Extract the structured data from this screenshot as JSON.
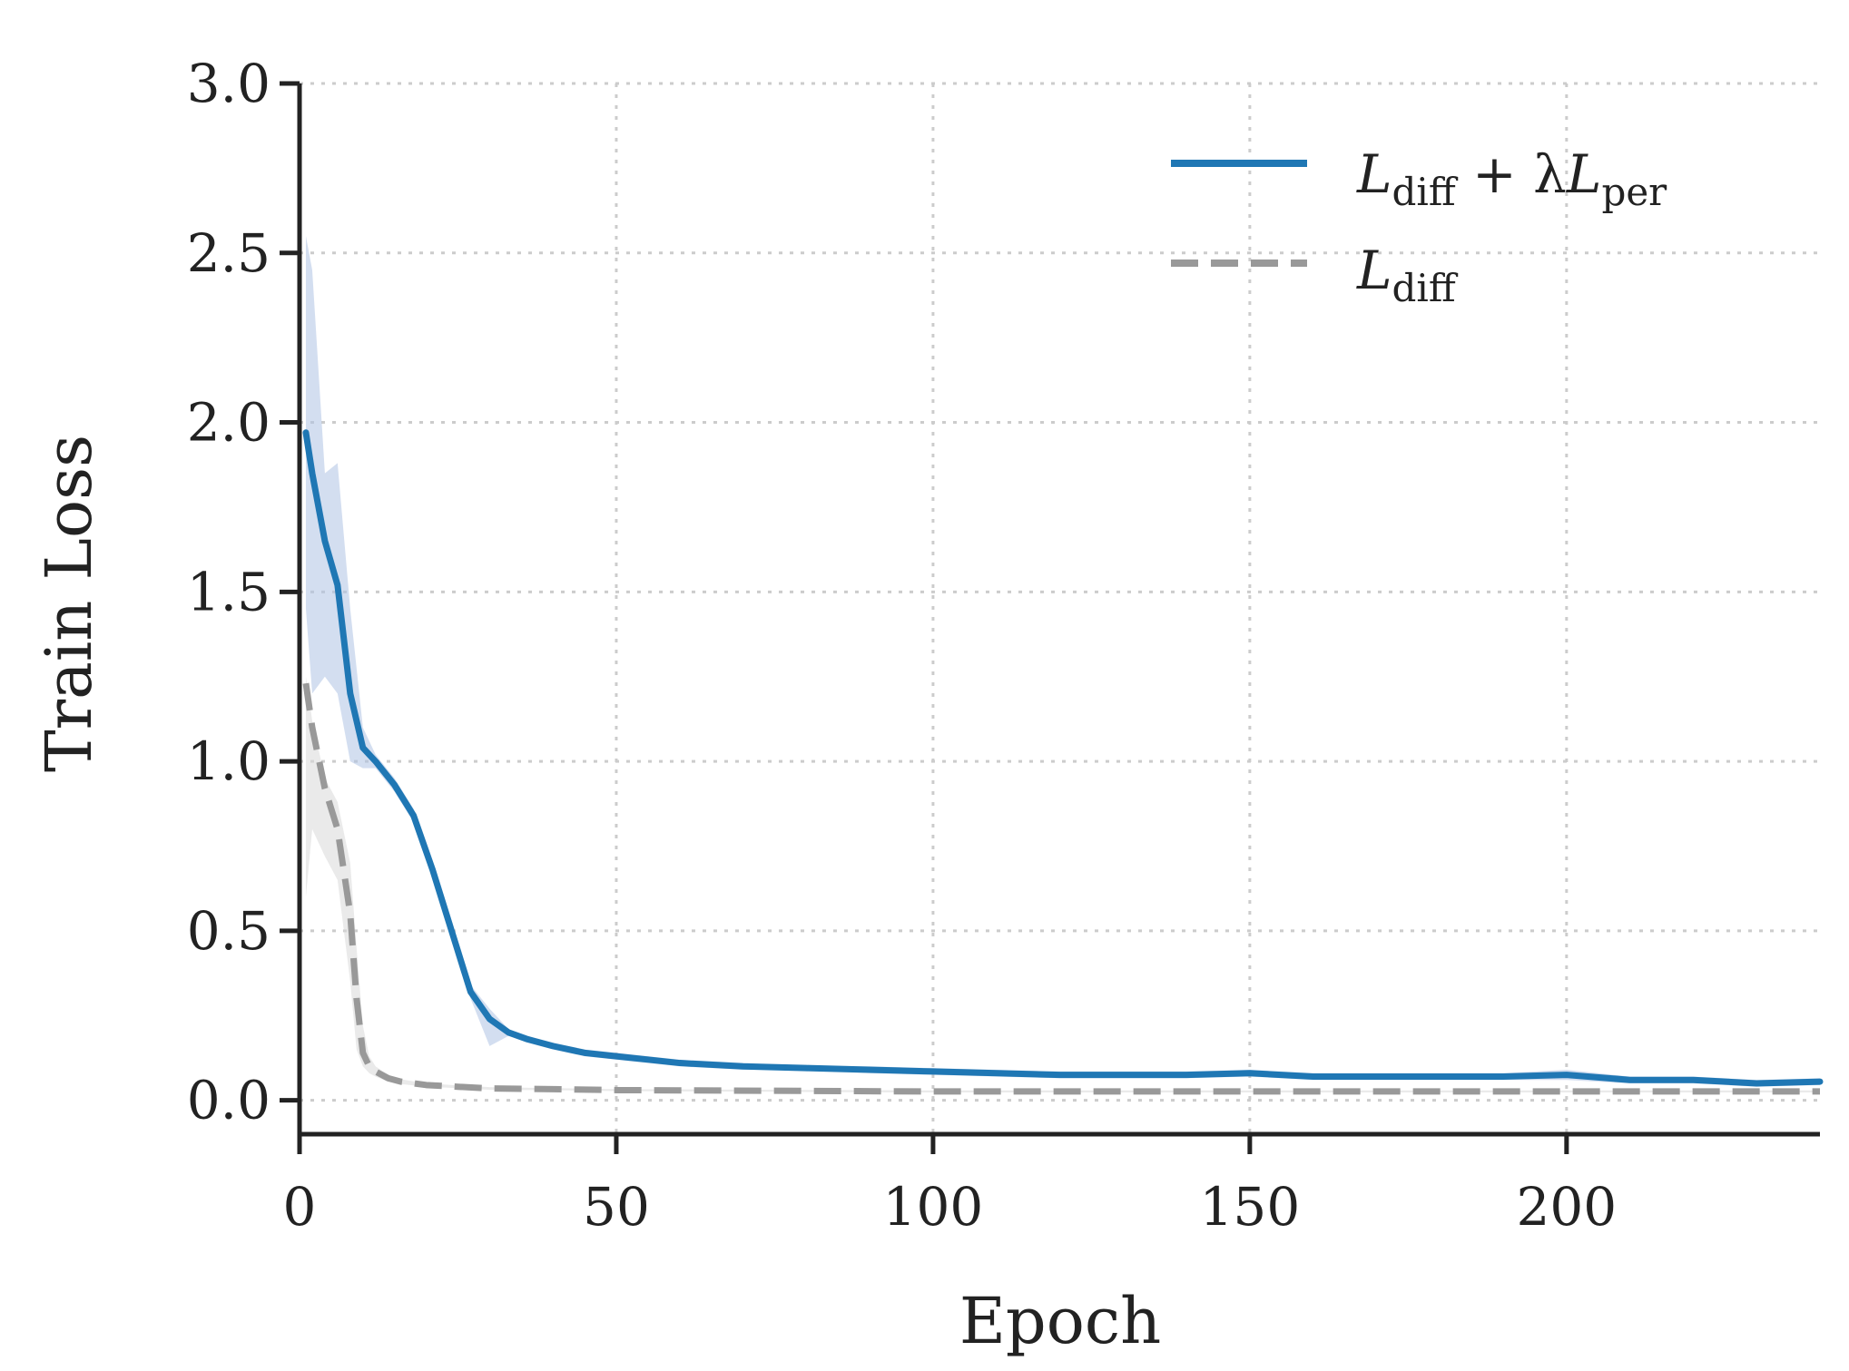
{
  "chart_data": {
    "type": "line",
    "xlabel": "Epoch",
    "ylabel": "Train Loss",
    "xlim": [
      0,
      240
    ],
    "ylim": [
      -0.1,
      3.0
    ],
    "xticks": [
      "0",
      "50",
      "100",
      "150",
      "200"
    ],
    "xtick_values": [
      0,
      50,
      100,
      150,
      200
    ],
    "yticks": [
      "0.0",
      "0.5",
      "1.0",
      "1.5",
      "2.0",
      "2.5",
      "3.0"
    ],
    "ytick_values": [
      0.0,
      0.5,
      1.0,
      1.5,
      2.0,
      2.5,
      3.0
    ],
    "grid": true,
    "legend_position": "top-right",
    "series": [
      {
        "name": "L_diff + λL_per",
        "legend": {
          "main": "L",
          "sub": "diff",
          "op": " + λ",
          "main2": "L",
          "sub2": "per"
        },
        "style": "solid",
        "color": "#1f77b4",
        "band_color": "#aec3e3",
        "x": [
          1,
          2,
          4,
          6,
          8,
          10,
          12,
          15,
          18,
          21,
          24,
          27,
          30,
          33,
          36,
          40,
          45,
          50,
          55,
          60,
          70,
          80,
          90,
          100,
          110,
          120,
          130,
          140,
          150,
          160,
          170,
          180,
          190,
          200,
          210,
          220,
          230,
          240
        ],
        "y": [
          1.97,
          1.85,
          1.65,
          1.52,
          1.2,
          1.04,
          1.0,
          0.93,
          0.84,
          0.68,
          0.5,
          0.32,
          0.24,
          0.2,
          0.18,
          0.16,
          0.14,
          0.13,
          0.12,
          0.11,
          0.1,
          0.095,
          0.09,
          0.085,
          0.08,
          0.075,
          0.075,
          0.075,
          0.08,
          0.07,
          0.07,
          0.07,
          0.07,
          0.075,
          0.06,
          0.06,
          0.05,
          0.055
        ],
        "y_upper": [
          2.55,
          2.45,
          1.85,
          1.88,
          1.45,
          1.1,
          1.02,
          0.95,
          0.86,
          0.7,
          0.52,
          0.34,
          0.27,
          0.21,
          0.19,
          0.17,
          0.15,
          0.14,
          0.13,
          0.12,
          0.11,
          0.1,
          0.1,
          0.095,
          0.09,
          0.085,
          0.085,
          0.085,
          0.09,
          0.08,
          0.08,
          0.08,
          0.08,
          0.09,
          0.07,
          0.07,
          0.06,
          0.065
        ],
        "y_lower": [
          1.45,
          1.2,
          1.25,
          1.2,
          1.0,
          0.98,
          0.98,
          0.91,
          0.82,
          0.66,
          0.48,
          0.3,
          0.16,
          0.19,
          0.17,
          0.15,
          0.13,
          0.12,
          0.11,
          0.1,
          0.09,
          0.09,
          0.08,
          0.075,
          0.07,
          0.065,
          0.065,
          0.065,
          0.07,
          0.06,
          0.06,
          0.06,
          0.06,
          0.06,
          0.05,
          0.05,
          0.04,
          0.045
        ]
      },
      {
        "name": "L_diff",
        "legend": {
          "main": "L",
          "sub": "diff"
        },
        "style": "dashed",
        "color": "#999999",
        "band_color": "#d9d9d9",
        "x": [
          1,
          2,
          4,
          6,
          8,
          9,
          10,
          11,
          12,
          14,
          16,
          20,
          25,
          30,
          40,
          50,
          75,
          100,
          150,
          200,
          240
        ],
        "y": [
          1.23,
          1.1,
          0.92,
          0.8,
          0.55,
          0.3,
          0.14,
          0.1,
          0.085,
          0.065,
          0.055,
          0.045,
          0.04,
          0.035,
          0.033,
          0.03,
          0.028,
          0.026,
          0.026,
          0.026,
          0.026
        ],
        "y_upper": [
          1.25,
          1.12,
          0.95,
          0.88,
          0.7,
          0.45,
          0.22,
          0.13,
          0.1,
          0.075,
          0.062,
          0.05,
          0.044,
          0.039,
          0.036,
          0.033,
          0.031,
          0.029,
          0.029,
          0.029,
          0.029
        ],
        "y_lower": [
          0.6,
          0.8,
          0.72,
          0.65,
          0.35,
          0.15,
          0.1,
          0.08,
          0.07,
          0.055,
          0.048,
          0.04,
          0.036,
          0.031,
          0.03,
          0.027,
          0.025,
          0.023,
          0.023,
          0.023,
          0.023
        ]
      }
    ]
  }
}
